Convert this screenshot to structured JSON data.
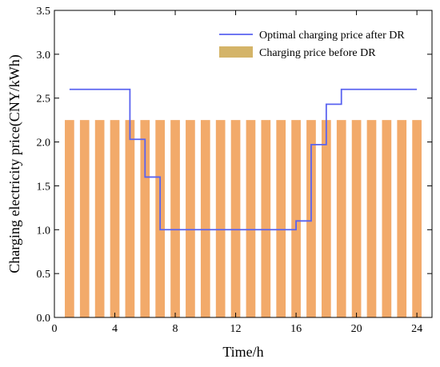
{
  "chart_data": {
    "type": "bar",
    "xlabel": "Time/h",
    "ylabel": "Charging electricity price(CNY/kWh)",
    "xlim": [
      0,
      25
    ],
    "ylim": [
      0,
      3.5
    ],
    "x_ticks": [
      0,
      4,
      8,
      12,
      16,
      20,
      24
    ],
    "y_ticks": [
      0.0,
      0.5,
      1.0,
      1.5,
      2.0,
      2.5,
      3.0,
      3.5
    ],
    "y_tick_labels": [
      "0.0",
      "0.5",
      "1.0",
      "1.5",
      "2.0",
      "2.5",
      "3.0",
      "3.5"
    ],
    "grid": false,
    "legend_position": "top-right",
    "series": [
      {
        "name": "Charging price before DR",
        "type": "bar",
        "color": "#f2aa6a",
        "x": [
          1,
          2,
          3,
          4,
          5,
          6,
          7,
          8,
          9,
          10,
          11,
          12,
          13,
          14,
          15,
          16,
          17,
          18,
          19,
          20,
          21,
          22,
          23,
          24
        ],
        "values": [
          2.25,
          2.25,
          2.25,
          2.25,
          2.25,
          2.25,
          2.25,
          2.25,
          2.25,
          2.25,
          2.25,
          2.25,
          2.25,
          2.25,
          2.25,
          2.25,
          2.25,
          2.25,
          2.25,
          2.25,
          2.25,
          2.25,
          2.25,
          2.25
        ]
      },
      {
        "name": "Optimal charging price after DR",
        "type": "step-line",
        "color": "#5a63f0",
        "x": [
          1,
          2,
          3,
          4,
          5,
          6,
          7,
          8,
          9,
          10,
          11,
          12,
          13,
          14,
          15,
          16,
          17,
          18,
          19,
          20,
          21,
          22,
          23,
          24
        ],
        "values": [
          2.6,
          2.6,
          2.6,
          2.6,
          2.03,
          1.6,
          1.0,
          1.0,
          1.0,
          1.0,
          1.0,
          1.0,
          1.0,
          1.0,
          1.0,
          1.1,
          1.97,
          2.43,
          2.6,
          2.6,
          2.6,
          2.6,
          2.6,
          2.6
        ]
      }
    ]
  }
}
